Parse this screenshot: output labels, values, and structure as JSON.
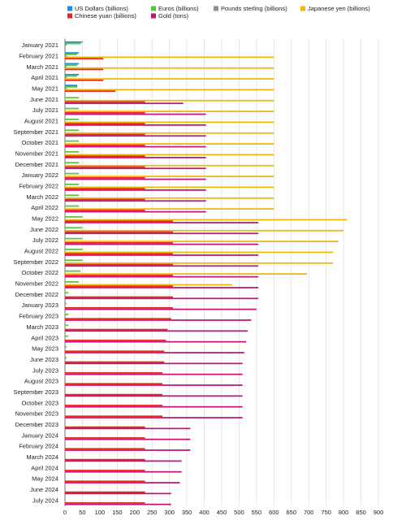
{
  "chart_data": {
    "type": "bar",
    "orientation": "horizontal",
    "categories": [
      "January 2021",
      "February 2021",
      "March 2021",
      "April 2021",
      "May 2021",
      "June 2021",
      "July 2021",
      "August 2021",
      "September 2021",
      "October 2021",
      "November 2021",
      "December 2021",
      "January 2022",
      "February 2022",
      "March 2022",
      "April 2022",
      "May 2022",
      "June 2022",
      "July 2022",
      "August 2022",
      "September 2022",
      "October 2022",
      "November 2022",
      "December 2022",
      "January 2023",
      "February 2023",
      "March 2023",
      "April 2023",
      "May 2023",
      "June 2023",
      "July 2023",
      "August 2023",
      "September 2023",
      "October 2023",
      "November 2023",
      "December 2023",
      "January 2024",
      "February 2024",
      "March 2024",
      "April 2024",
      "May 2024",
      "June 2024",
      "July 2024"
    ],
    "series": [
      {
        "name": "US Dollars (billions)",
        "color": "#1a8fe0",
        "values": [
          50,
          40,
          40,
          40,
          35,
          0,
          0,
          0,
          0,
          0,
          0,
          0,
          0,
          0,
          0,
          0,
          0,
          0,
          0,
          0,
          0,
          0,
          0,
          0,
          0,
          0,
          0,
          0,
          0,
          0,
          0,
          0,
          0,
          0,
          0,
          0,
          0,
          0,
          0,
          0,
          0,
          0,
          0
        ]
      },
      {
        "name": "Euros (billions)",
        "color": "#5ac43b",
        "values": [
          45,
          35,
          35,
          35,
          35,
          40,
          40,
          40,
          40,
          40,
          40,
          40,
          40,
          40,
          40,
          40,
          50,
          50,
          50,
          50,
          50,
          45,
          40,
          10,
          5,
          10,
          10,
          10,
          5,
          5,
          0,
          0,
          0,
          0,
          0,
          0,
          0,
          0,
          0,
          0,
          0,
          0,
          0
        ]
      },
      {
        "name": "Pounds sterling (billions)",
        "color": "#8e8e8e",
        "values": [
          5,
          5,
          5,
          5,
          5,
          0,
          0,
          0,
          0,
          0,
          0,
          0,
          0,
          0,
          0,
          0,
          0,
          0,
          0,
          0,
          0,
          0,
          0,
          0,
          0,
          0,
          0,
          0,
          0,
          0,
          0,
          0,
          0,
          0,
          0,
          0,
          0,
          0,
          0,
          0,
          0,
          0,
          0
        ]
      },
      {
        "name": "Japanese yen (billions)",
        "color": "#f2b705",
        "values": [
          0,
          600,
          600,
          600,
          600,
          600,
          600,
          600,
          600,
          600,
          600,
          600,
          600,
          600,
          600,
          600,
          810,
          800,
          785,
          770,
          770,
          695,
          480,
          0,
          0,
          0,
          0,
          0,
          0,
          0,
          0,
          0,
          0,
          0,
          0,
          0,
          0,
          0,
          0,
          0,
          0,
          0,
          0
        ]
      },
      {
        "name": "Chinese yuan (billions)",
        "color": "#e8261c",
        "values": [
          0,
          110,
          110,
          110,
          145,
          230,
          230,
          230,
          230,
          230,
          230,
          230,
          230,
          230,
          230,
          230,
          310,
          310,
          310,
          310,
          310,
          310,
          310,
          310,
          310,
          305,
          295,
          290,
          285,
          285,
          280,
          280,
          280,
          280,
          280,
          230,
          230,
          230,
          230,
          230,
          230,
          230,
          230
        ]
      },
      {
        "name": "Gold (tons)",
        "color": "#c0157a",
        "values": [
          0,
          0,
          0,
          0,
          0,
          340,
          405,
          405,
          405,
          405,
          405,
          405,
          405,
          405,
          405,
          405,
          555,
          555,
          555,
          555,
          555,
          555,
          555,
          555,
          550,
          535,
          525,
          520,
          515,
          510,
          510,
          510,
          510,
          510,
          510,
          360,
          360,
          360,
          335,
          335,
          330,
          305,
          305
        ]
      }
    ],
    "xlim": [
      0,
      900
    ],
    "xticks": [
      0,
      50,
      100,
      150,
      200,
      250,
      300,
      350,
      400,
      450,
      500,
      550,
      600,
      650,
      700,
      750,
      800,
      850,
      900
    ],
    "grid": true
  }
}
